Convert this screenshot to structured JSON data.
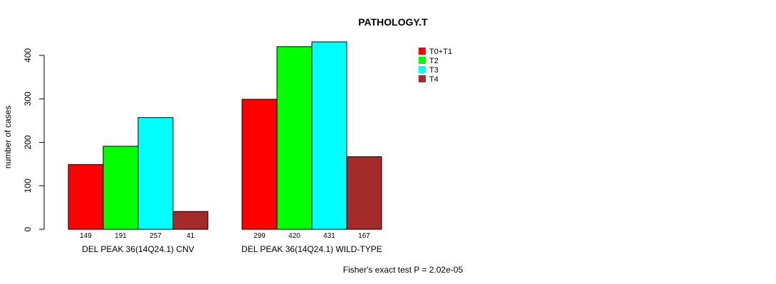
{
  "chart_data": {
    "type": "bar",
    "title": "PATHOLOGY.T",
    "ylabel": "number of cases",
    "xlabel": "",
    "ylim": [
      0,
      400
    ],
    "yticks": [
      0,
      100,
      200,
      300,
      400
    ],
    "grid": false,
    "legend_position": "top-right",
    "groups": [
      {
        "name": "DEL PEAK 36(14Q24.1) CNV",
        "values": [
          149,
          191,
          257,
          41
        ],
        "value_labels": [
          "149",
          "191",
          "257",
          "41"
        ]
      },
      {
        "name": "DEL PEAK 36(14Q24.1) WILD-TYPE",
        "values": [
          299,
          420,
          431,
          167
        ],
        "value_labels": [
          "299",
          "420",
          "431",
          "167"
        ]
      }
    ],
    "series": [
      {
        "name": "T0+T1",
        "color": "#ff0000"
      },
      {
        "name": "T2",
        "color": "#00ff00"
      },
      {
        "name": "T3",
        "color": "#00ffff"
      },
      {
        "name": "T4",
        "color": "#a52a2a"
      }
    ],
    "annotation": "Fisher's exact test P = 2.02e-05"
  }
}
